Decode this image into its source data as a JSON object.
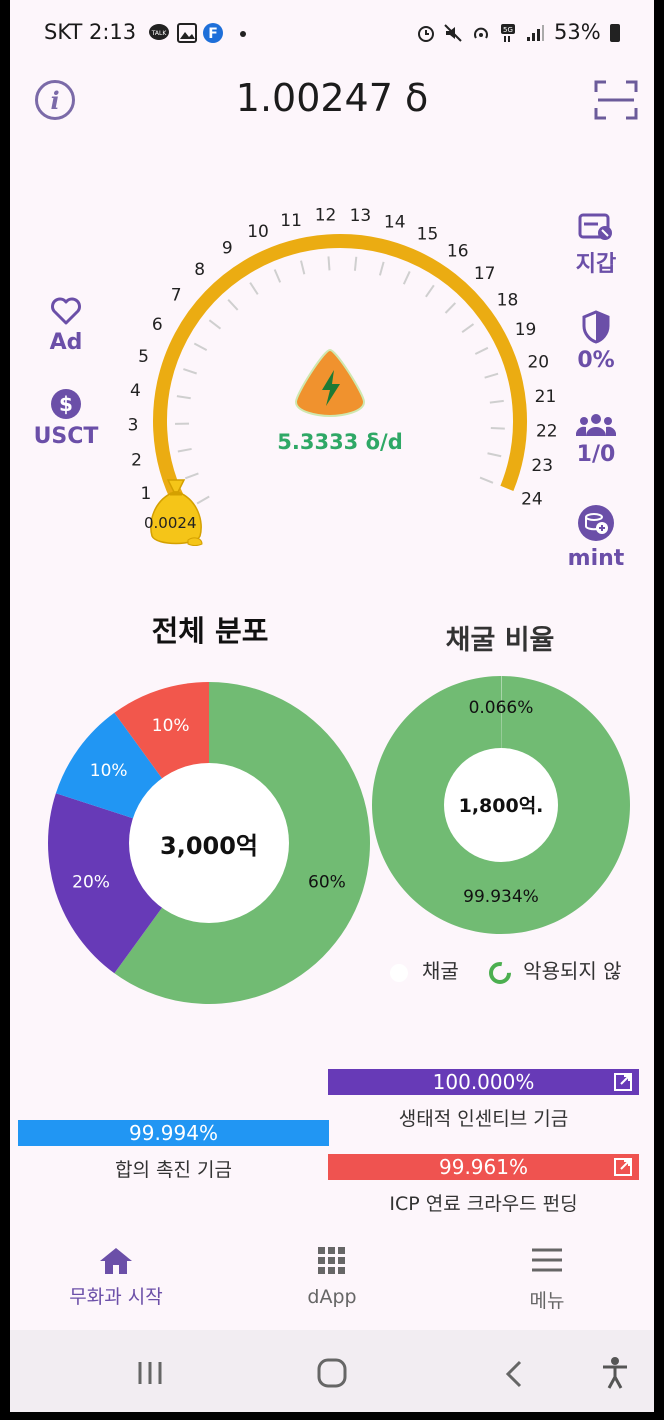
{
  "status_bar": {
    "time": "SKT 2:13",
    "battery": "53%"
  },
  "header": {
    "balance": "1.00247 δ"
  },
  "side_left": [
    {
      "label": "Ad",
      "icon": "heart-icon"
    },
    {
      "label": "USCT",
      "icon": "dollar-icon"
    }
  ],
  "side_right": [
    {
      "label": "지갑",
      "icon": "wallet-icon"
    },
    {
      "label": "0%",
      "icon": "shield-icon"
    },
    {
      "label": "1/0",
      "icon": "group-icon"
    },
    {
      "label": "mint",
      "icon": "coins-plus-icon"
    }
  ],
  "gauge": {
    "ticks": [
      "1",
      "2",
      "3",
      "4",
      "5",
      "6",
      "7",
      "8",
      "9",
      "10",
      "11",
      "12",
      "13",
      "14",
      "15",
      "16",
      "17",
      "18",
      "19",
      "20",
      "21",
      "22",
      "23",
      "24"
    ],
    "rate": "5.3333 δ/d",
    "value": "0.0024",
    "progress_fraction": 1.0
  },
  "total_distribution": {
    "title": "전체 분포",
    "center": "3,000억",
    "slices": [
      {
        "label": "60%",
        "value": 60,
        "color": "#71bb73"
      },
      {
        "label": "20%",
        "value": 20,
        "color": "#673ab7"
      },
      {
        "label": "10%",
        "value": 10,
        "color": "#2196f3"
      },
      {
        "label": "10%",
        "value": 10,
        "color": "#f2574c"
      }
    ]
  },
  "mining_ratio": {
    "title": "채굴 비율",
    "center": "1,800억.",
    "slices": [
      {
        "label": "0.066%",
        "value": 0.066,
        "color": "#e8f3e8"
      },
      {
        "label": "99.934%",
        "value": 99.934,
        "color": "#71bb73"
      }
    ],
    "legend": [
      {
        "label": "채굴",
        "color": "#ffffff"
      },
      {
        "label": "악용되지 않",
        "color": "#4caf50"
      }
    ]
  },
  "bars": {
    "ecosystem": {
      "value": "100.000%",
      "caption": "생태적 인센티브 기금",
      "color": "#673ab7"
    },
    "consensus": {
      "value": "99.994%",
      "caption": "합의 촉진 기금",
      "color": "#2196f3"
    },
    "icp": {
      "value": "99.961%",
      "caption": "ICP 연료 크라우드 펀딩",
      "color": "#ef5350"
    }
  },
  "nav": {
    "home": "무화과 시작",
    "dapp": "dApp",
    "menu": "메뉴"
  }
}
